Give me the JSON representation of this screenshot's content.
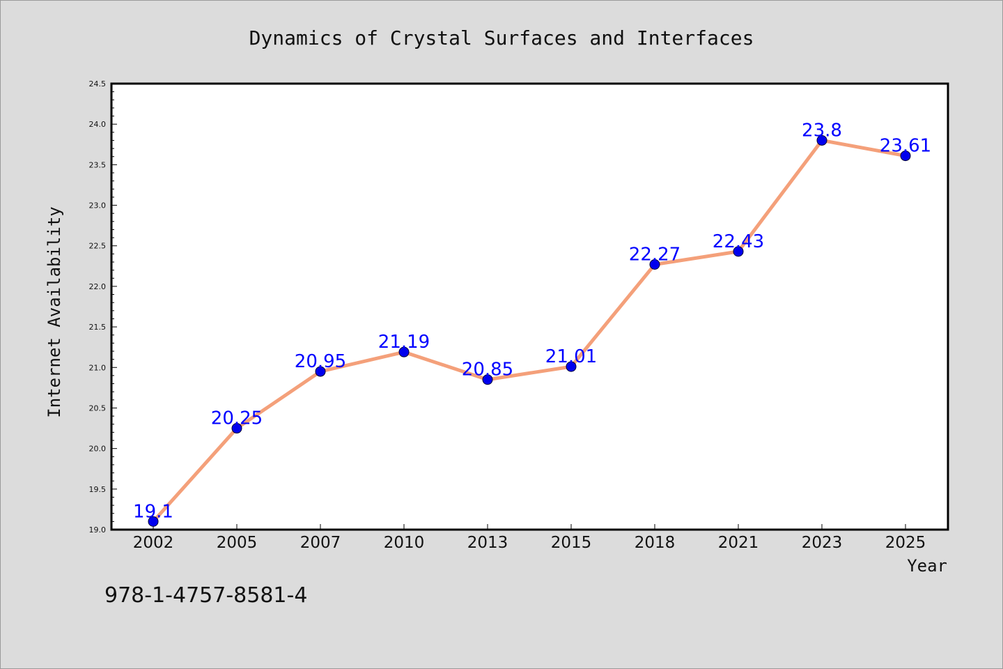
{
  "chart_data": {
    "type": "line",
    "title": "Dynamics of Crystal Surfaces and Interfaces",
    "xlabel": "Year",
    "ylabel": "Internet Availability",
    "categories": [
      "2002",
      "2005",
      "2007",
      "2010",
      "2013",
      "2015",
      "2018",
      "2021",
      "2023",
      "2025"
    ],
    "values": [
      19.1,
      20.25,
      20.95,
      21.19,
      20.85,
      21.01,
      22.27,
      22.43,
      23.8,
      23.61
    ],
    "data_labels": [
      "19.1",
      "20.25",
      "20.95",
      "21.19",
      "20.85",
      "21.01",
      "22.27",
      "22.43",
      "23.8",
      "23.61"
    ],
    "ylim": [
      19.0,
      24.5
    ],
    "yticks": [
      "19.0",
      "19.5",
      "20.0",
      "20.5",
      "21.0",
      "21.5",
      "22.0",
      "22.5",
      "23.0",
      "23.5",
      "24.0",
      "24.5"
    ],
    "grid": false,
    "legend": "none",
    "line_color": "#f4a07a",
    "marker_color": "#0000ee",
    "label_color": "#0000ff"
  },
  "footer": {
    "isbn": "978-1-4757-8581-4"
  }
}
